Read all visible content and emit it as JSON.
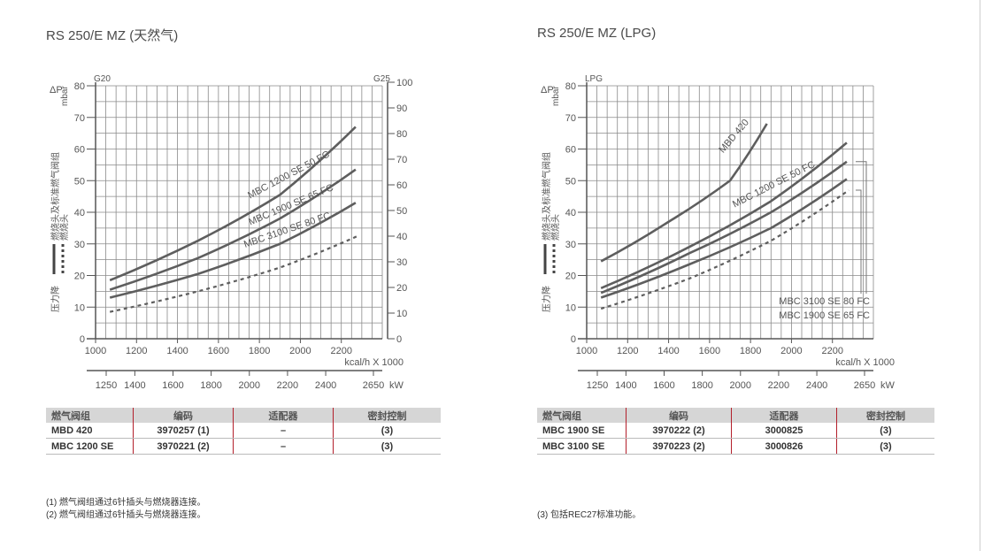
{
  "panels": [
    {
      "title": "RS 250/E MZ (天然气)",
      "table": {
        "headers": [
          "燃气阀组",
          "编码",
          "适配器",
          "密封控制"
        ],
        "rows": [
          [
            "MBD 420",
            "3970257 (1)",
            "–",
            "(3)"
          ],
          [
            "MBC 1200 SE",
            "3970221 (2)",
            "–",
            "(3)"
          ]
        ]
      },
      "notes": [
        "(1) 燃气阀组通过6针插头与燃烧器连接。",
        "(2) 燃气阀组通过6针插头与燃烧器连接。"
      ]
    },
    {
      "title": "RS 250/E MZ (LPG)",
      "table": {
        "headers": [
          "燃气阀组",
          "编码",
          "适配器",
          "密封控制"
        ],
        "rows": [
          [
            "MBC 1900 SE",
            "3970222 (2)",
            "3000825",
            "(3)"
          ],
          [
            "MBC 3100 SE",
            "3970223 (2)",
            "3000826",
            "(3)"
          ]
        ]
      },
      "notes": [
        "(3) 包括REC27标准功能。"
      ]
    }
  ],
  "chart_data": [
    {
      "type": "line",
      "x_unit": "kcal/h X 1000",
      "x_ticks": [
        "1000",
        "1200",
        "1400",
        "1600",
        "1800",
        "2000",
        "2200"
      ],
      "xlim": [
        1000,
        2400
      ],
      "kw_ticks": [
        {
          "kw": 1250,
          "label": "1250"
        },
        {
          "kw": 1400,
          "label": "1400"
        },
        {
          "kw": 1600,
          "label": "1600"
        },
        {
          "kw": 1800,
          "label": "1800"
        },
        {
          "kw": 2000,
          "label": "2000"
        },
        {
          "kw": 2200,
          "label": "2200"
        },
        {
          "kw": 2400,
          "label": "2400"
        },
        {
          "kw": 2650,
          "label": "2650"
        }
      ],
      "kw_unit": "kW",
      "y_top_label": "G20",
      "y_unit_symbol": "ΔP",
      "y_unit": "mbar",
      "ylim": [
        0,
        80
      ],
      "y_ticks": [
        "0",
        "10",
        "20",
        "30",
        "40",
        "50",
        "60",
        "70",
        "80"
      ],
      "y2_top_label": "G25",
      "y2_ticks": [
        "0",
        "10",
        "20",
        "30",
        "40",
        "50",
        "60",
        "70",
        "80",
        "90",
        "100"
      ],
      "y2lim": [
        0,
        100
      ],
      "side_label_a": "燃烧头及标准燃气阀组",
      "side_label_b": "燃烧头",
      "side_label_c": "压力降",
      "grid": true,
      "series": [
        {
          "name": "MBC 1200 SE 50 FC",
          "style": "solid",
          "x": [
            1070,
            1500,
            1900,
            2270
          ],
          "y": [
            18.5,
            31,
            45.5,
            67
          ]
        },
        {
          "name": "MBC 1900 SE 65 FC",
          "style": "solid",
          "x": [
            1070,
            1500,
            1900,
            2270
          ],
          "y": [
            15.5,
            25.5,
            38,
            53.5
          ]
        },
        {
          "name": "MBC 3100 SE 80 FC",
          "style": "solid",
          "x": [
            1070,
            1500,
            1900,
            2270
          ],
          "y": [
            13,
            20.5,
            30,
            43
          ]
        },
        {
          "name": "",
          "style": "dashed",
          "x": [
            1070,
            1500,
            1900,
            2280
          ],
          "y": [
            8.5,
            15,
            22.5,
            32.5
          ]
        }
      ],
      "colors": {
        "line": "#5e5e5e",
        "grid": "#8a8a8a"
      }
    },
    {
      "type": "line",
      "x_unit": "kcal/h X 1000",
      "x_ticks": [
        "1000",
        "1200",
        "1400",
        "1600",
        "1800",
        "2000",
        "2200"
      ],
      "xlim": [
        1000,
        2400
      ],
      "kw_ticks": [
        {
          "kw": 1250,
          "label": "1250"
        },
        {
          "kw": 1400,
          "label": "1400"
        },
        {
          "kw": 1600,
          "label": "1600"
        },
        {
          "kw": 1800,
          "label": "1800"
        },
        {
          "kw": 2000,
          "label": "2000"
        },
        {
          "kw": 2200,
          "label": "2200"
        },
        {
          "kw": 2400,
          "label": "2400"
        },
        {
          "kw": 2650,
          "label": "2650"
        }
      ],
      "kw_unit": "kW",
      "y_top_label": "LPG",
      "y_unit_symbol": "ΔP",
      "y_unit": "mbar",
      "ylim": [
        0,
        80
      ],
      "y_ticks": [
        "0",
        "10",
        "20",
        "30",
        "40",
        "50",
        "60",
        "70",
        "80"
      ],
      "side_label_a": "燃烧头及标准燃气阀组",
      "side_label_b": "燃烧头",
      "side_label_c": "压力降",
      "grid": true,
      "series": [
        {
          "name": "MBD 420",
          "style": "solid",
          "x": [
            1070,
            1400,
            1700,
            1880
          ],
          "y": [
            24.5,
            37,
            50,
            68
          ]
        },
        {
          "name": "MBC 1200 SE 50 FC",
          "style": "solid",
          "x": [
            1070,
            1500,
            1900,
            2270
          ],
          "y": [
            16,
            29,
            43.5,
            62
          ]
        },
        {
          "name": "MBC 3100 SE 80 FC",
          "style": "solid",
          "x": [
            1070,
            1500,
            1900,
            2270
          ],
          "y": [
            14.5,
            27,
            40,
            56
          ]
        },
        {
          "name": "MBC 1900 SE 65 FC",
          "style": "solid",
          "x": [
            1070,
            1500,
            1900,
            2270
          ],
          "y": [
            13,
            23.5,
            35,
            50.5
          ]
        },
        {
          "name": "",
          "style": "dashed",
          "x": [
            1070,
            1500,
            1900,
            2280
          ],
          "y": [
            9.5,
            19,
            31,
            47
          ]
        }
      ],
      "colors": {
        "line": "#5e5e5e",
        "grid": "#8a8a8a"
      }
    }
  ]
}
